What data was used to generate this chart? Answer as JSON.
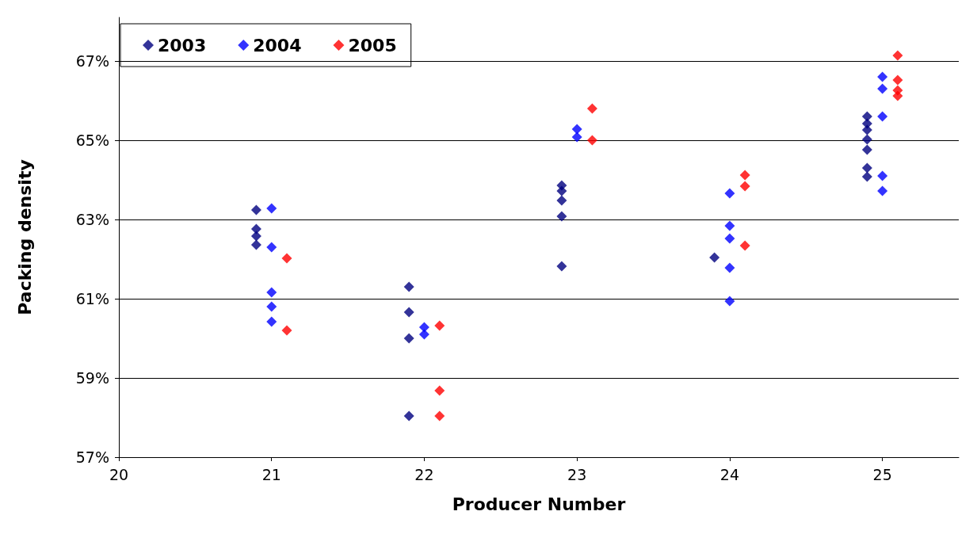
{
  "chart_data": {
    "type": "scatter",
    "xlabel": "Producer Number",
    "ylabel": "Packing density",
    "xlim": [
      20,
      25.5
    ],
    "xticks": [
      20,
      21,
      22,
      23,
      24,
      25
    ],
    "ylim": [
      57,
      68.1
    ],
    "yticks": [
      {
        "value": 57,
        "label": "57%"
      },
      {
        "value": 59,
        "label": "59%"
      },
      {
        "value": 61,
        "label": "61%"
      },
      {
        "value": 63,
        "label": "63%"
      },
      {
        "value": 65,
        "label": "65%"
      },
      {
        "value": 67,
        "label": "67%"
      }
    ],
    "grid": "y",
    "legend": "top left",
    "marker": "diamond",
    "series": [
      {
        "name": "2003",
        "color": "#000080",
        "x": [
          20.9,
          20.9,
          20.9,
          20.9,
          21.9,
          21.9,
          21.9,
          21.9,
          22.9,
          22.9,
          22.9,
          22.9,
          22.9,
          23.9,
          24.9,
          24.9,
          24.9,
          24.9,
          24.9,
          24.9,
          24.9
        ],
        "values": [
          63.24,
          62.76,
          62.58,
          62.36,
          61.3,
          60.66,
          60.0,
          58.04,
          63.86,
          63.72,
          63.48,
          63.08,
          61.82,
          62.04,
          65.6,
          65.42,
          65.26,
          65.02,
          64.76,
          64.3,
          64.08
        ]
      },
      {
        "name": "2004",
        "color": "#0000ff",
        "x": [
          21,
          21,
          21,
          21,
          21,
          22,
          22,
          23,
          23,
          24,
          24,
          24,
          24,
          24,
          25,
          25,
          25,
          25,
          25
        ],
        "values": [
          63.28,
          62.3,
          61.16,
          60.8,
          60.42,
          60.28,
          60.1,
          65.28,
          65.08,
          63.66,
          62.84,
          62.52,
          61.78,
          60.94,
          66.6,
          66.3,
          65.6,
          64.1,
          63.72
        ]
      },
      {
        "name": "2005",
        "color": "#ff0000",
        "x": [
          21.1,
          21.1,
          22.1,
          22.1,
          22.1,
          23.1,
          23.1,
          24.1,
          24.1,
          24.1,
          25.1,
          25.1,
          25.1,
          25.1
        ],
        "values": [
          62.02,
          60.2,
          60.32,
          58.68,
          58.04,
          65.8,
          65.0,
          64.12,
          63.84,
          62.34,
          67.14,
          66.52,
          66.26,
          66.12
        ]
      }
    ]
  }
}
